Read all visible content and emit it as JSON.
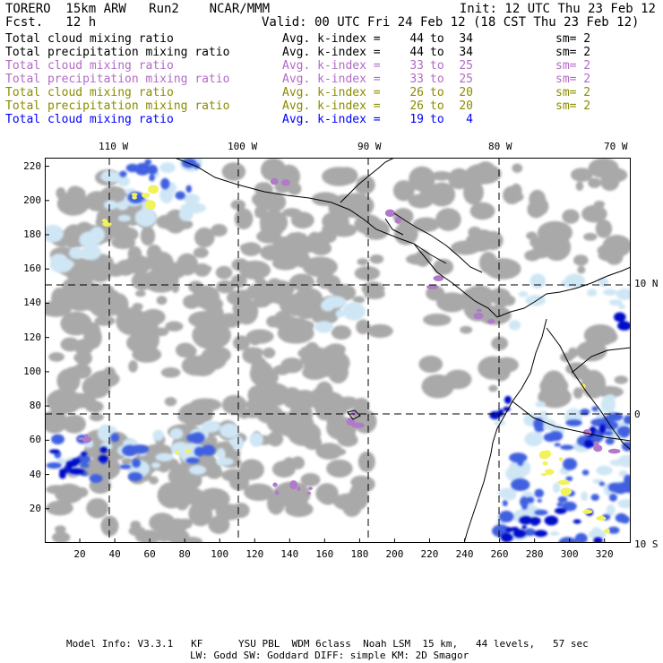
{
  "header": {
    "title_line": "TORERO  15km ARW   Run2    NCAR/MMM",
    "fcst_line": "Fcst.   12 h",
    "init": "Init: 12 UTC Thu 23 Feb 12",
    "valid": "Valid: 00 UTC Fri 24 Feb 12 (18 CST Thu 23 Feb 12)"
  },
  "legend": [
    {
      "name": "Total cloud mixing ratio",
      "avg": "Avg. k-index =",
      "from": "44",
      "to": "to",
      "end": "34",
      "sm": "sm= 2",
      "color": "#000000"
    },
    {
      "name": "Total precipitation mixing ratio",
      "avg": "Avg. k-index =",
      "from": "44",
      "to": "to",
      "end": "34",
      "sm": "sm= 2",
      "color": "#000000"
    },
    {
      "name": "Total cloud mixing ratio",
      "avg": "Avg. k-index =",
      "from": "33",
      "to": "to",
      "end": "25",
      "sm": "sm= 2",
      "color": "#b26bc6"
    },
    {
      "name": "Total precipitation mixing ratio",
      "avg": "Avg. k-index =",
      "from": "33",
      "to": "to",
      "end": "25",
      "sm": "sm= 2",
      "color": "#b26bc6"
    },
    {
      "name": "Total cloud mixing ratio",
      "avg": "Avg. k-index =",
      "from": "26",
      "to": "to",
      "end": "20",
      "sm": "sm= 2",
      "color": "#8b8b00"
    },
    {
      "name": "Total precipitation mixing ratio",
      "avg": "Avg. k-index =",
      "from": "26",
      "to": "to",
      "end": "20",
      "sm": "sm= 2",
      "color": "#8b8b00"
    },
    {
      "name": "Total cloud mixing ratio",
      "avg": "Avg. k-index =",
      "from": "19",
      "to": "to",
      "end": "4",
      "sm": "",
      "color": "#0000ff"
    }
  ],
  "map": {
    "longitude_labels": [
      "110 W",
      "100 W",
      "90 W",
      "80 W",
      "70 W"
    ],
    "latitude_labels": [
      "10 N",
      "0",
      "10 S"
    ],
    "y_ticks": [
      "220",
      "200",
      "180",
      "160",
      "140",
      "120",
      "100",
      "80",
      "60",
      "40",
      "20"
    ],
    "x_ticks": [
      "20",
      "40",
      "60",
      "80",
      "100",
      "120",
      "140",
      "160",
      "180",
      "200",
      "220",
      "240",
      "260",
      "280",
      "300",
      "320"
    ],
    "colors": {
      "gray": "#a9a9a9",
      "light_blue": "#cfe6f5",
      "blue": "#4060e0",
      "dark_blue": "#0010c8",
      "purple": "#b07ac8",
      "yellow": "#f2f25a"
    }
  },
  "footer": {
    "line1": "Model Info: V3.3.1   KF      YSU PBL  WDM 6class  Noah LSM  15 km,   44 levels,   57 sec",
    "line2": "LW: Godd SW: Goddard DIFF: simple KM: 2D Smagor"
  }
}
